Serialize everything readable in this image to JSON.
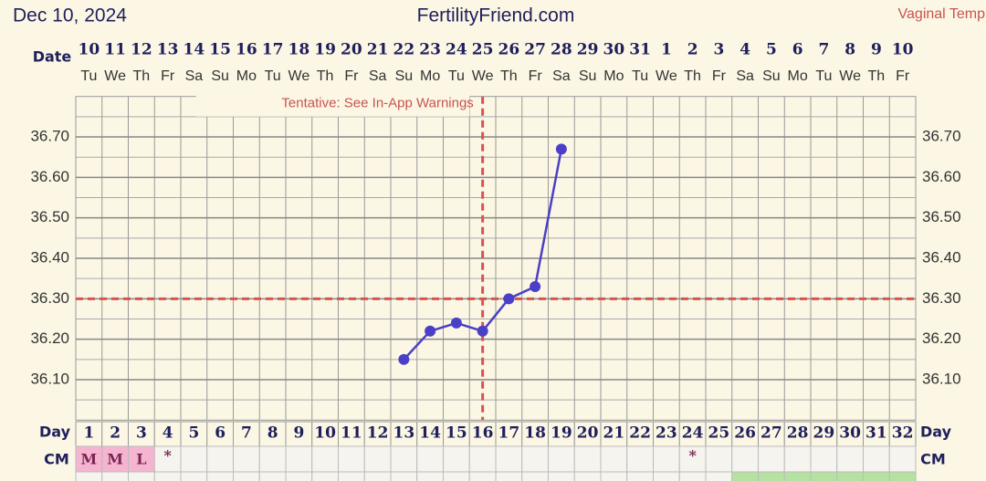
{
  "header": {
    "date": "Dec 10, 2024",
    "site": "FertilityFriend.com",
    "method": "Vaginal Temp"
  },
  "chart_data": {
    "type": "line",
    "row_labels": {
      "date": "Date",
      "day": "Day",
      "cm": "CM"
    },
    "note": "Tentative: See In-App Warnings",
    "dates": [
      "10",
      "11",
      "12",
      "13",
      "14",
      "15",
      "16",
      "17",
      "18",
      "19",
      "20",
      "21",
      "22",
      "23",
      "24",
      "25",
      "26",
      "27",
      "28",
      "29",
      "30",
      "31",
      "1",
      "2",
      "3",
      "4",
      "5",
      "6",
      "7",
      "8",
      "9",
      "10"
    ],
    "weekdays": [
      "Tu",
      "We",
      "Th",
      "Fr",
      "Sa",
      "Su",
      "Mo",
      "Tu",
      "We",
      "Th",
      "Fr",
      "Sa",
      "Su",
      "Mo",
      "Tu",
      "We",
      "Th",
      "Fr",
      "Sa",
      "Su",
      "Mo",
      "Tu",
      "We",
      "Th",
      "Fr",
      "Sa",
      "Su",
      "Mo",
      "Tu",
      "We",
      "Th",
      "Fr"
    ],
    "categories": [
      "1",
      "2",
      "3",
      "4",
      "5",
      "6",
      "7",
      "8",
      "9",
      "10",
      "11",
      "12",
      "13",
      "14",
      "15",
      "16",
      "17",
      "18",
      "19",
      "20",
      "21",
      "22",
      "23",
      "24",
      "25",
      "26",
      "27",
      "28",
      "29",
      "30",
      "31",
      "32"
    ],
    "cm": [
      "M",
      "M",
      "L",
      "*",
      null,
      null,
      null,
      null,
      null,
      null,
      null,
      null,
      null,
      null,
      null,
      null,
      null,
      null,
      null,
      null,
      null,
      null,
      null,
      "*",
      null,
      null,
      null,
      null,
      null,
      null,
      null,
      null
    ],
    "values": [
      null,
      null,
      null,
      null,
      null,
      null,
      null,
      null,
      null,
      null,
      null,
      null,
      36.15,
      36.22,
      36.24,
      36.22,
      36.3,
      36.33,
      36.67,
      null,
      null,
      null,
      null,
      null,
      null,
      null,
      null,
      null,
      null,
      null,
      null,
      null
    ],
    "color": "#4b3fc7",
    "coverline": 36.3,
    "ovulation_day": 16,
    "ylim": [
      36.0,
      36.8
    ],
    "yticks": [
      {
        "value": 36.1,
        "label": "36.10"
      },
      {
        "value": 36.2,
        "label": "36.20"
      },
      {
        "value": 36.3,
        "label": "36.30"
      },
      {
        "value": 36.4,
        "label": "36.40"
      },
      {
        "value": 36.5,
        "label": "36.50"
      },
      {
        "value": 36.6,
        "label": "36.60"
      },
      {
        "value": 36.7,
        "label": "36.70"
      }
    ],
    "grid": true
  }
}
